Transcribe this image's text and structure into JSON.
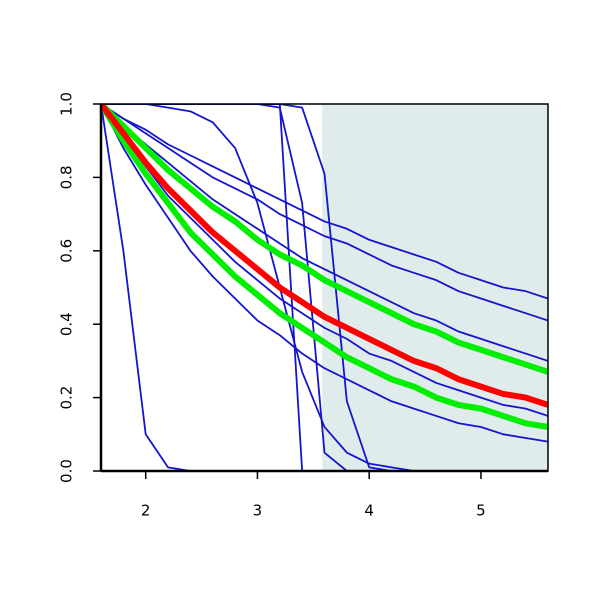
{
  "chart_data": {
    "type": "line",
    "x": [
      1.6,
      1.8,
      2.0,
      2.2,
      2.4,
      2.6,
      2.8,
      3.0,
      3.2,
      3.4,
      3.6,
      3.8,
      4.0,
      4.2,
      4.4,
      4.6,
      4.8,
      5.0,
      5.2,
      5.4,
      5.6
    ],
    "series": [
      {
        "color": "#1515cc",
        "values": [
          1,
          0.96,
          0.93,
          0.89,
          0.86,
          0.83,
          0.8,
          0.77,
          0.74,
          0.71,
          0.68,
          0.66,
          0.63,
          0.61,
          0.59,
          0.57,
          0.54,
          0.52,
          0.5,
          0.49,
          0.47
        ]
      },
      {
        "color": "#1515cc",
        "values": [
          1,
          0.96,
          0.92,
          0.88,
          0.84,
          0.8,
          0.77,
          0.74,
          0.7,
          0.67,
          0.64,
          0.62,
          0.59,
          0.56,
          0.54,
          0.52,
          0.49,
          0.47,
          0.45,
          0.43,
          0.41
        ]
      },
      {
        "color": "#1515cc",
        "values": [
          1,
          0.94,
          0.89,
          0.84,
          0.79,
          0.74,
          0.7,
          0.66,
          0.62,
          0.58,
          0.55,
          0.52,
          0.49,
          0.46,
          0.43,
          0.41,
          0.38,
          0.36,
          0.34,
          0.32,
          0.3
        ]
      },
      {
        "color": "#1515cc",
        "values": [
          1,
          0.91,
          0.83,
          0.75,
          0.69,
          0.63,
          0.57,
          0.52,
          0.47,
          0.43,
          0.39,
          0.36,
          0.32,
          0.3,
          0.27,
          0.24,
          0.22,
          0.2,
          0.18,
          0.17,
          0.15
        ]
      },
      {
        "color": "#1515cc",
        "values": [
          1,
          0.88,
          0.78,
          0.69,
          0.6,
          0.53,
          0.47,
          0.41,
          0.37,
          0.32,
          0.28,
          0.25,
          0.22,
          0.19,
          0.17,
          0.15,
          0.13,
          0.12,
          0.1,
          0.09,
          0.08
        ]
      },
      {
        "color": "#1515cc",
        "values": [
          1,
          0.6,
          0.1,
          0.01,
          0,
          0,
          0,
          0,
          0,
          0,
          0,
          0,
          0,
          0,
          0,
          0,
          0,
          0,
          0,
          0,
          0
        ]
      },
      {
        "color": "#1515cc",
        "values": [
          1,
          1,
          1,
          1,
          1,
          1,
          1,
          1,
          1,
          0,
          0,
          0,
          0,
          0,
          0,
          0,
          0,
          0,
          0,
          0,
          0
        ]
      },
      {
        "color": "#1515cc",
        "values": [
          1,
          1,
          1,
          1,
          1,
          1,
          1,
          1,
          0.99,
          0.73,
          0.05,
          0,
          0,
          0,
          0,
          0,
          0,
          0,
          0,
          0,
          0
        ]
      },
      {
        "color": "#1515cc",
        "values": [
          1,
          1,
          1,
          1,
          1,
          1,
          1,
          1,
          1,
          0.99,
          0.81,
          0.19,
          0.01,
          0,
          0,
          0,
          0,
          0,
          0,
          0,
          0
        ]
      },
      {
        "color": "#1515cc",
        "values": [
          1,
          1,
          1,
          0.99,
          0.98,
          0.95,
          0.88,
          0.73,
          0.5,
          0.27,
          0.12,
          0.05,
          0.02,
          0.01,
          0,
          0,
          0,
          0,
          0,
          0,
          0
        ]
      },
      {
        "color": "#00ee00",
        "values": [
          1,
          0.94,
          0.88,
          0.82,
          0.77,
          0.72,
          0.68,
          0.63,
          0.59,
          0.56,
          0.52,
          0.49,
          0.46,
          0.43,
          0.4,
          0.38,
          0.35,
          0.33,
          0.31,
          0.29,
          0.27
        ]
      },
      {
        "color": "#00ee00",
        "values": [
          1,
          0.9,
          0.81,
          0.73,
          0.65,
          0.59,
          0.53,
          0.48,
          0.43,
          0.39,
          0.35,
          0.31,
          0.28,
          0.25,
          0.23,
          0.2,
          0.18,
          0.17,
          0.15,
          0.13,
          0.12
        ]
      },
      {
        "color": "#ff0000",
        "values": [
          1,
          0.92,
          0.84,
          0.77,
          0.71,
          0.65,
          0.6,
          0.55,
          0.5,
          0.46,
          0.42,
          0.39,
          0.36,
          0.33,
          0.3,
          0.28,
          0.25,
          0.23,
          0.21,
          0.2,
          0.18
        ]
      }
    ],
    "highlight_range": [
      3.58,
      5.6
    ],
    "highlight_color": "#dfeceb",
    "xlim": [
      1.6,
      5.6
    ],
    "xticks": [
      2,
      3,
      4,
      5
    ],
    "ylim": [
      0,
      1
    ],
    "yticks": [
      {
        "value": 0,
        "label": "0.0"
      },
      0.2,
      0.4,
      0.6,
      0.8,
      {
        "value": 1,
        "label": "1.0"
      }
    ]
  }
}
